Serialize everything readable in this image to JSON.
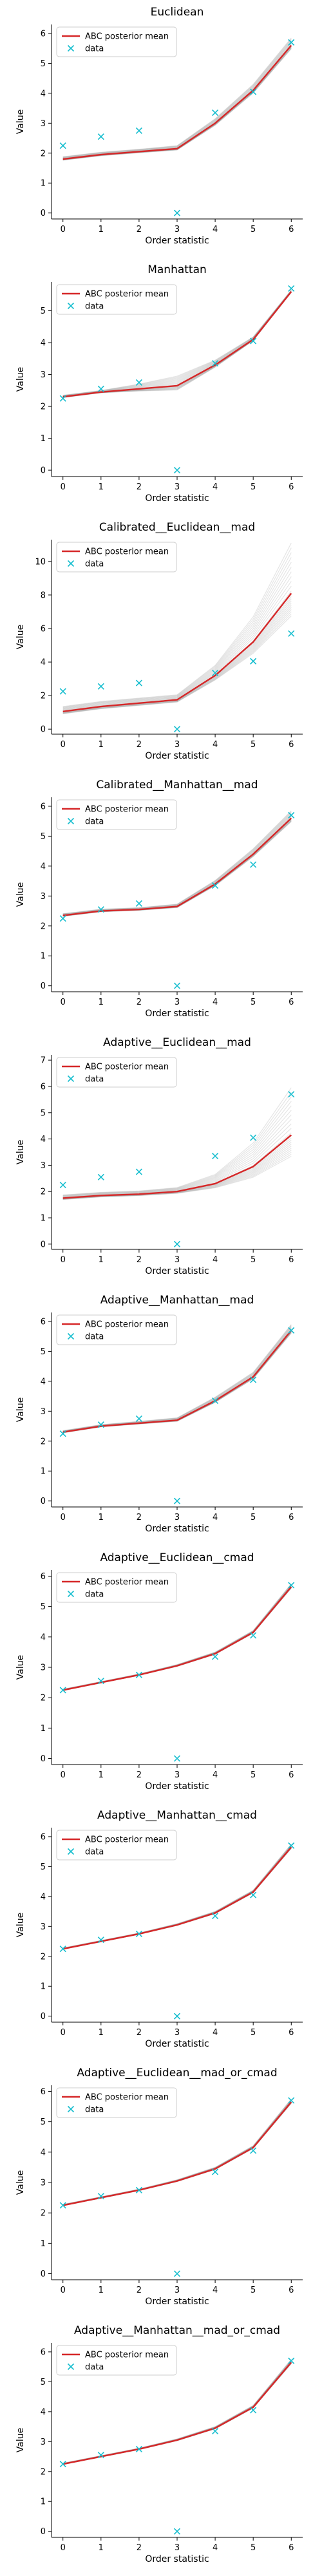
{
  "figure": {
    "shared_xlabel": "Order statistic",
    "shared_ylabel": "Value"
  },
  "legend_labels": {
    "line": "ABC posterior mean",
    "points": "data"
  },
  "colors": {
    "line": "#d62728",
    "points": "#17becf",
    "band": "#888888",
    "axes": "#000000"
  },
  "chart_data": [
    {
      "type": "line",
      "title": "Euclidean",
      "xlabel": "Order statistic",
      "ylabel": "Value",
      "legend": "top-left",
      "x": [
        0,
        1,
        2,
        3,
        4,
        5,
        6
      ],
      "xlim": [
        -0.3,
        6.3
      ],
      "ylim": [
        -0.2,
        6.3
      ],
      "yticks": [
        0,
        1,
        2,
        3,
        4,
        5,
        6
      ],
      "series": [
        {
          "name": "ABC posterior mean",
          "kind": "line",
          "values": [
            1.8,
            1.95,
            2.05,
            2.15,
            3.0,
            4.1,
            5.6
          ]
        },
        {
          "name": "data",
          "kind": "scatter",
          "values": [
            2.25,
            2.55,
            2.75,
            0.0,
            3.35,
            4.05,
            5.7
          ]
        }
      ],
      "band_spread": [
        0.08,
        0.08,
        0.08,
        0.1,
        0.15,
        0.2,
        0.25
      ]
    },
    {
      "type": "line",
      "title": "Manhattan",
      "xlabel": "Order statistic",
      "ylabel": "Value",
      "legend": "top-left",
      "x": [
        0,
        1,
        2,
        3,
        4,
        5,
        6
      ],
      "xlim": [
        -0.3,
        6.3
      ],
      "ylim": [
        -0.2,
        5.9
      ],
      "yticks": [
        0,
        1,
        2,
        3,
        4,
        5
      ],
      "series": [
        {
          "name": "ABC posterior mean",
          "kind": "line",
          "values": [
            2.3,
            2.45,
            2.55,
            2.65,
            3.3,
            4.1,
            5.6
          ]
        },
        {
          "name": "data",
          "kind": "scatter",
          "values": [
            2.25,
            2.55,
            2.75,
            0.0,
            3.35,
            4.05,
            5.7
          ]
        }
      ],
      "band_spread": [
        0.05,
        0.05,
        0.15,
        0.3,
        0.15,
        0.08,
        0.05
      ]
    },
    {
      "type": "line",
      "title": "Calibrated__Euclidean__mad",
      "xlabel": "Order statistic",
      "ylabel": "Value",
      "legend": "top-left",
      "x": [
        0,
        1,
        2,
        3,
        4,
        5,
        6
      ],
      "xlim": [
        -0.3,
        6.3
      ],
      "ylim": [
        -0.3,
        11.3
      ],
      "yticks": [
        0,
        2,
        4,
        6,
        8,
        10
      ],
      "series": [
        {
          "name": "ABC posterior mean",
          "kind": "line",
          "values": [
            1.05,
            1.35,
            1.55,
            1.75,
            3.2,
            5.2,
            8.1
          ]
        },
        {
          "name": "data",
          "kind": "scatter",
          "values": [
            2.25,
            2.55,
            2.75,
            0.0,
            3.35,
            4.05,
            5.7
          ]
        }
      ],
      "band_spread": [
        0.3,
        0.3,
        0.3,
        0.3,
        0.6,
        1.5,
        3.0
      ]
    },
    {
      "type": "line",
      "title": "Calibrated__Manhattan__mad",
      "xlabel": "Order statistic",
      "ylabel": "Value",
      "legend": "top-left",
      "x": [
        0,
        1,
        2,
        3,
        4,
        5,
        6
      ],
      "xlim": [
        -0.3,
        6.3
      ],
      "ylim": [
        -0.2,
        6.3
      ],
      "yticks": [
        0,
        1,
        2,
        3,
        4,
        5,
        6
      ],
      "series": [
        {
          "name": "ABC posterior mean",
          "kind": "line",
          "values": [
            2.35,
            2.5,
            2.55,
            2.65,
            3.4,
            4.4,
            5.6
          ]
        },
        {
          "name": "data",
          "kind": "scatter",
          "values": [
            2.25,
            2.55,
            2.75,
            0.0,
            3.35,
            4.05,
            5.7
          ]
        }
      ],
      "band_spread": [
        0.06,
        0.06,
        0.06,
        0.08,
        0.12,
        0.18,
        0.25
      ]
    },
    {
      "type": "line",
      "title": "Adaptive__Euclidean__mad",
      "xlabel": "Order statistic",
      "ylabel": "Value",
      "legend": "top-left",
      "x": [
        0,
        1,
        2,
        3,
        4,
        5,
        6
      ],
      "xlim": [
        -0.3,
        6.3
      ],
      "ylim": [
        -0.2,
        7.2
      ],
      "yticks": [
        0,
        1,
        2,
        3,
        4,
        5,
        6,
        7
      ],
      "series": [
        {
          "name": "ABC posterior mean",
          "kind": "line",
          "values": [
            1.75,
            1.85,
            1.9,
            2.0,
            2.3,
            2.95,
            4.15
          ]
        },
        {
          "name": "data",
          "kind": "scatter",
          "values": [
            2.25,
            2.55,
            2.75,
            0.0,
            3.35,
            4.05,
            5.7
          ]
        }
      ],
      "band_spread": [
        0.12,
        0.12,
        0.12,
        0.15,
        0.35,
        0.9,
        1.8
      ]
    },
    {
      "type": "line",
      "title": "Adaptive__Manhattan__mad",
      "xlabel": "Order statistic",
      "ylabel": "Value",
      "legend": "top-left",
      "x": [
        0,
        1,
        2,
        3,
        4,
        5,
        6
      ],
      "xlim": [
        -0.3,
        6.3
      ],
      "ylim": [
        -0.2,
        6.3
      ],
      "yticks": [
        0,
        1,
        2,
        3,
        4,
        5,
        6
      ],
      "series": [
        {
          "name": "ABC posterior mean",
          "kind": "line",
          "values": [
            2.3,
            2.5,
            2.6,
            2.7,
            3.35,
            4.15,
            5.7
          ]
        },
        {
          "name": "data",
          "kind": "scatter",
          "values": [
            2.25,
            2.55,
            2.75,
            0.0,
            3.35,
            4.05,
            5.7
          ]
        }
      ],
      "band_spread": [
        0.05,
        0.05,
        0.06,
        0.08,
        0.12,
        0.15,
        0.2
      ]
    },
    {
      "type": "line",
      "title": "Adaptive__Euclidean__cmad",
      "xlabel": "Order statistic",
      "ylabel": "Value",
      "legend": "top-left",
      "x": [
        0,
        1,
        2,
        3,
        4,
        5,
        6
      ],
      "xlim": [
        -0.3,
        6.3
      ],
      "ylim": [
        -0.2,
        6.2
      ],
      "yticks": [
        0,
        1,
        2,
        3,
        4,
        5,
        6
      ],
      "series": [
        {
          "name": "ABC posterior mean",
          "kind": "line",
          "values": [
            2.25,
            2.5,
            2.75,
            3.05,
            3.45,
            4.15,
            5.65
          ]
        },
        {
          "name": "data",
          "kind": "scatter",
          "values": [
            2.25,
            2.55,
            2.75,
            0.0,
            3.35,
            4.05,
            5.7
          ]
        }
      ],
      "band_spread": [
        0.03,
        0.03,
        0.03,
        0.04,
        0.05,
        0.06,
        0.1
      ]
    },
    {
      "type": "line",
      "title": "Adaptive__Manhattan__cmad",
      "xlabel": "Order statistic",
      "ylabel": "Value",
      "legend": "top-left",
      "x": [
        0,
        1,
        2,
        3,
        4,
        5,
        6
      ],
      "xlim": [
        -0.3,
        6.3
      ],
      "ylim": [
        -0.2,
        6.3
      ],
      "yticks": [
        0,
        1,
        2,
        3,
        4,
        5,
        6
      ],
      "series": [
        {
          "name": "ABC posterior mean",
          "kind": "line",
          "values": [
            2.25,
            2.5,
            2.75,
            3.05,
            3.45,
            4.15,
            5.65
          ]
        },
        {
          "name": "data",
          "kind": "scatter",
          "values": [
            2.25,
            2.55,
            2.75,
            0.0,
            3.35,
            4.05,
            5.7
          ]
        }
      ],
      "band_spread": [
        0.03,
        0.03,
        0.03,
        0.04,
        0.05,
        0.06,
        0.1
      ]
    },
    {
      "type": "line",
      "title": "Adaptive__Euclidean__mad_or_cmad",
      "xlabel": "Order statistic",
      "ylabel": "Value",
      "legend": "top-left",
      "x": [
        0,
        1,
        2,
        3,
        4,
        5,
        6
      ],
      "xlim": [
        -0.3,
        6.3
      ],
      "ylim": [
        -0.2,
        6.2
      ],
      "yticks": [
        0,
        1,
        2,
        3,
        4,
        5,
        6
      ],
      "series": [
        {
          "name": "ABC posterior mean",
          "kind": "line",
          "values": [
            2.25,
            2.5,
            2.75,
            3.05,
            3.45,
            4.15,
            5.65
          ]
        },
        {
          "name": "data",
          "kind": "scatter",
          "values": [
            2.25,
            2.55,
            2.75,
            0.0,
            3.35,
            4.05,
            5.7
          ]
        }
      ],
      "band_spread": [
        0.03,
        0.03,
        0.03,
        0.04,
        0.05,
        0.06,
        0.1
      ]
    },
    {
      "type": "line",
      "title": "Adaptive__Manhattan__mad_or_cmad",
      "xlabel": "Order statistic",
      "ylabel": "Value",
      "legend": "top-left",
      "x": [
        0,
        1,
        2,
        3,
        4,
        5,
        6
      ],
      "xlim": [
        -0.3,
        6.3
      ],
      "ylim": [
        -0.2,
        6.3
      ],
      "yticks": [
        0,
        1,
        2,
        3,
        4,
        5,
        6
      ],
      "series": [
        {
          "name": "ABC posterior mean",
          "kind": "line",
          "values": [
            2.25,
            2.5,
            2.75,
            3.05,
            3.45,
            4.15,
            5.65
          ]
        },
        {
          "name": "data",
          "kind": "scatter",
          "values": [
            2.25,
            2.55,
            2.75,
            0.0,
            3.35,
            4.05,
            5.7
          ]
        }
      ],
      "band_spread": [
        0.03,
        0.03,
        0.03,
        0.04,
        0.05,
        0.06,
        0.1
      ]
    }
  ]
}
